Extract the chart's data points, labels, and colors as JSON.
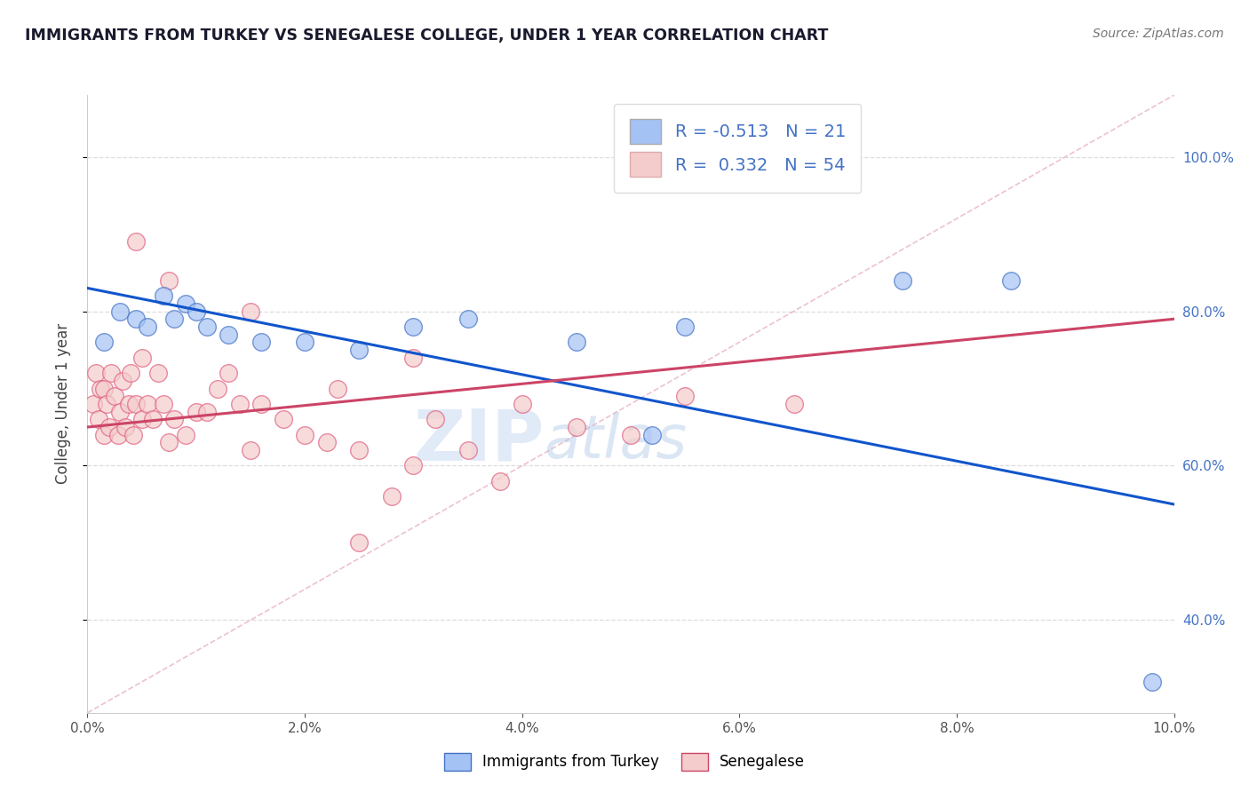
{
  "title": "IMMIGRANTS FROM TURKEY VS SENEGALESE COLLEGE, UNDER 1 YEAR CORRELATION CHART",
  "source_text": "Source: ZipAtlas.com",
  "ylabel": "College, Under 1 year",
  "xmin": 0.0,
  "xmax": 10.0,
  "ymin": 28.0,
  "ymax": 108.0,
  "blue_R": -0.513,
  "blue_N": 21,
  "pink_R": 0.332,
  "pink_N": 54,
  "blue_color": "#a4c2f4",
  "pink_color": "#f4cccc",
  "blue_line_color": "#1155cc",
  "pink_line_color": "#cc4466",
  "legend_label_blue": "Immigrants from Turkey",
  "legend_label_pink": "Senegalese",
  "blue_points_x": [
    0.15,
    0.3,
    0.45,
    0.55,
    0.7,
    0.8,
    0.9,
    1.0,
    1.1,
    1.3,
    1.6,
    2.0,
    2.5,
    3.0,
    3.5,
    4.5,
    5.2,
    5.5,
    7.5,
    8.5,
    9.8
  ],
  "blue_points_y": [
    76,
    80,
    79,
    78,
    82,
    79,
    81,
    80,
    78,
    77,
    76,
    76,
    75,
    78,
    79,
    76,
    64,
    78,
    84,
    84,
    32
  ],
  "pink_points_x": [
    0.05,
    0.08,
    0.1,
    0.12,
    0.15,
    0.15,
    0.18,
    0.2,
    0.22,
    0.25,
    0.28,
    0.3,
    0.32,
    0.35,
    0.38,
    0.4,
    0.42,
    0.45,
    0.5,
    0.5,
    0.55,
    0.6,
    0.65,
    0.7,
    0.75,
    0.8,
    0.9,
    1.0,
    1.1,
    1.2,
    1.3,
    1.4,
    1.5,
    1.6,
    1.8,
    2.0,
    2.2,
    2.5,
    2.8,
    3.0,
    3.2,
    3.5,
    3.8,
    4.0,
    4.5,
    5.0,
    5.5,
    6.5,
    0.45,
    0.75,
    1.5,
    2.3,
    3.0,
    2.5
  ],
  "pink_points_y": [
    68,
    72,
    66,
    70,
    64,
    70,
    68,
    65,
    72,
    69,
    64,
    67,
    71,
    65,
    68,
    72,
    64,
    68,
    66,
    74,
    68,
    66,
    72,
    68,
    63,
    66,
    64,
    67,
    67,
    70,
    72,
    68,
    62,
    68,
    66,
    64,
    63,
    62,
    56,
    60,
    66,
    62,
    58,
    68,
    65,
    64,
    69,
    68,
    89,
    84,
    80,
    70,
    74,
    50
  ],
  "blue_trend_x": [
    0.0,
    10.0
  ],
  "blue_trend_y": [
    83.0,
    55.0
  ],
  "pink_trend_x": [
    0.0,
    10.0
  ],
  "pink_trend_y": [
    65.0,
    79.0
  ],
  "ref_line_x": [
    0.0,
    10.0
  ],
  "ref_line_y": [
    28.0,
    108.0
  ],
  "watermark_zip": "ZIP",
  "watermark_atlas": "atlas",
  "background_color": "#ffffff",
  "grid_color": "#dddddd",
  "yticks": [
    40,
    60,
    80,
    100
  ],
  "ytick_labels_right": [
    "40.0%",
    "60.0%",
    "80.0%",
    "100.0%"
  ]
}
